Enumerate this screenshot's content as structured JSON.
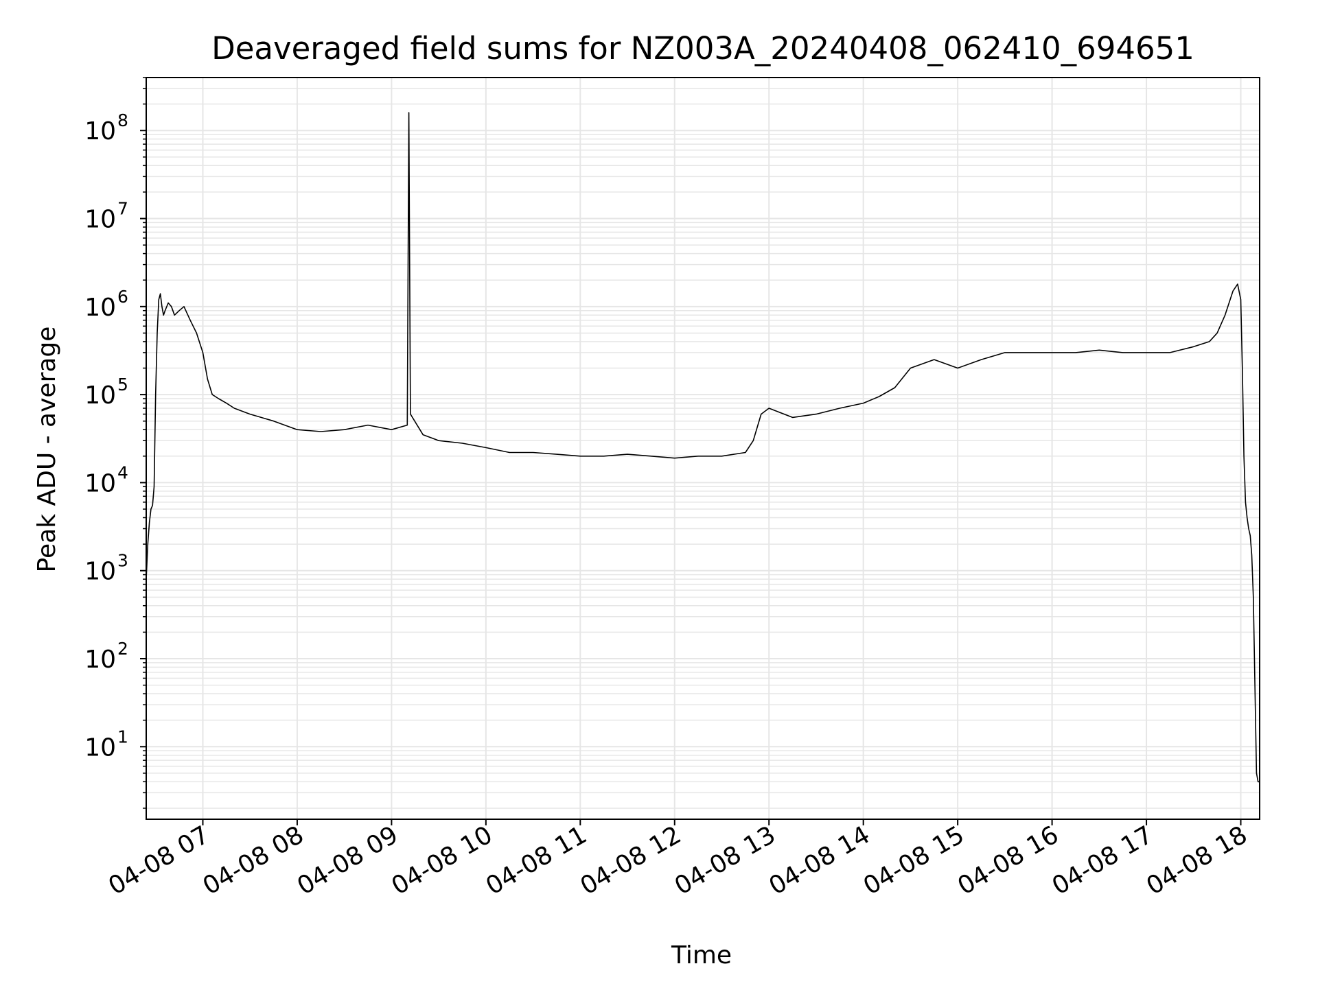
{
  "chart_data": {
    "type": "line",
    "title": "Deaveraged field sums for NZ003A_20240408_062410_694651",
    "xlabel": "Time",
    "ylabel": "Peak ADU - average",
    "yscale": "log",
    "xlim": [
      "04-08 06:24",
      "04-08 18:12"
    ],
    "ylim": [
      1.5,
      400000000
    ],
    "grid": true,
    "line_color": "#000000",
    "grid_color": "#e6e6e6",
    "x_ticks": [
      {
        "value": "04-08 07:00",
        "label": "04-08 07"
      },
      {
        "value": "04-08 08:00",
        "label": "04-08 08"
      },
      {
        "value": "04-08 09:00",
        "label": "04-08 09"
      },
      {
        "value": "04-08 10:00",
        "label": "04-08 10"
      },
      {
        "value": "04-08 11:00",
        "label": "04-08 11"
      },
      {
        "value": "04-08 12:00",
        "label": "04-08 12"
      },
      {
        "value": "04-08 13:00",
        "label": "04-08 13"
      },
      {
        "value": "04-08 14:00",
        "label": "04-08 14"
      },
      {
        "value": "04-08 15:00",
        "label": "04-08 15"
      },
      {
        "value": "04-08 16:00",
        "label": "04-08 16"
      },
      {
        "value": "04-08 17:00",
        "label": "04-08 17"
      },
      {
        "value": "04-08 18:00",
        "label": "04-08 18"
      }
    ],
    "y_ticks": [
      {
        "value": 10,
        "base": "10",
        "exp": "1"
      },
      {
        "value": 100,
        "base": "10",
        "exp": "2"
      },
      {
        "value": 1000,
        "base": "10",
        "exp": "3"
      },
      {
        "value": 10000,
        "base": "10",
        "exp": "4"
      },
      {
        "value": 100000,
        "base": "10",
        "exp": "5"
      },
      {
        "value": 1000000,
        "base": "10",
        "exp": "6"
      },
      {
        "value": 10000000,
        "base": "10",
        "exp": "7"
      },
      {
        "value": 100000000,
        "base": "10",
        "exp": "8"
      }
    ],
    "series": [
      {
        "x": [
          "04-08 06:24",
          "04-08 06:25",
          "04-08 06:26",
          "04-08 06:27",
          "04-08 06:28",
          "04-08 06:29",
          "04-08 06:30",
          "04-08 06:31",
          "04-08 06:32",
          "04-08 06:33",
          "04-08 06:34",
          "04-08 06:35",
          "04-08 06:36",
          "04-08 06:38",
          "04-08 06:40",
          "04-08 06:42",
          "04-08 06:45",
          "04-08 06:48",
          "04-08 06:52",
          "04-08 06:56",
          "04-08 07:00",
          "04-08 07:03",
          "04-08 07:06",
          "04-08 07:10",
          "04-08 07:15",
          "04-08 07:20",
          "04-08 07:30",
          "04-08 07:45",
          "04-08 08:00",
          "04-08 08:15",
          "04-08 08:30",
          "04-08 08:45",
          "04-08 09:00",
          "04-08 09:10",
          "04-08 09:11",
          "04-08 09:12",
          "04-08 09:20",
          "04-08 09:30",
          "04-08 09:45",
          "04-08 10:00",
          "04-08 10:15",
          "04-08 10:30",
          "04-08 10:45",
          "04-08 11:00",
          "04-08 11:15",
          "04-08 11:30",
          "04-08 11:45",
          "04-08 12:00",
          "04-08 12:15",
          "04-08 12:30",
          "04-08 12:45",
          "04-08 12:50",
          "04-08 12:55",
          "04-08 13:00",
          "04-08 13:15",
          "04-08 13:30",
          "04-08 13:45",
          "04-08 14:00",
          "04-08 14:10",
          "04-08 14:20",
          "04-08 14:30",
          "04-08 14:45",
          "04-08 15:00",
          "04-08 15:15",
          "04-08 15:30",
          "04-08 15:45",
          "04-08 16:00",
          "04-08 16:15",
          "04-08 16:30",
          "04-08 16:45",
          "04-08 17:00",
          "04-08 17:15",
          "04-08 17:30",
          "04-08 17:40",
          "04-08 17:45",
          "04-08 17:50",
          "04-08 17:55",
          "04-08 17:58",
          "04-08 18:00",
          "04-08 18:01",
          "04-08 18:02",
          "04-08 18:03",
          "04-08 18:04",
          "04-08 18:05",
          "04-08 18:06",
          "04-08 18:07",
          "04-08 18:08",
          "04-08 18:09",
          "04-08 18:10",
          "04-08 18:11",
          "04-08 18:12"
        ],
        "y": [
          800,
          2000,
          3500,
          5000,
          5500,
          9000,
          100000,
          500000,
          1200000,
          1400000,
          1000000,
          800000,
          900000,
          1100000,
          1000000,
          800000,
          900000,
          1000000,
          700000,
          500000,
          300000,
          150000,
          100000,
          90000,
          80000,
          70000,
          60000,
          50000,
          40000,
          38000,
          40000,
          45000,
          40000,
          45000,
          160000000,
          60000,
          35000,
          30000,
          28000,
          25000,
          22000,
          22000,
          21000,
          20000,
          20000,
          21000,
          20000,
          19000,
          20000,
          20000,
          22000,
          30000,
          60000,
          70000,
          55000,
          60000,
          70000,
          80000,
          95000,
          120000,
          200000,
          250000,
          200000,
          250000,
          300000,
          300000,
          300000,
          300000,
          320000,
          300000,
          300000,
          300000,
          350000,
          400000,
          500000,
          800000,
          1500000,
          1800000,
          1200000,
          200000,
          20000,
          6000,
          4000,
          3000,
          2500,
          1500,
          500,
          50,
          5,
          4,
          4
        ]
      }
    ]
  }
}
